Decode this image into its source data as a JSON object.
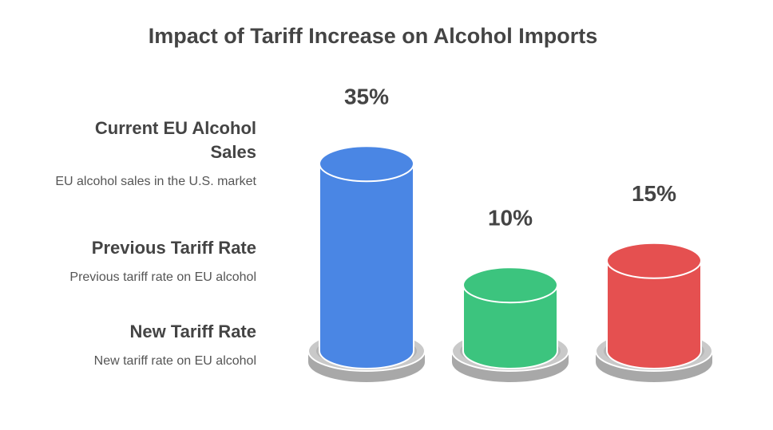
{
  "chart_data": {
    "type": "bar",
    "title": "Impact of Tariff Increase on Alcohol Imports",
    "categories": [
      "Current EU Alcohol Sales",
      "Previous Tariff Rate",
      "New Tariff Rate"
    ],
    "descriptions": [
      "EU alcohol sales in the U.S. market",
      "Previous tariff rate on EU alcohol",
      "New tariff rate on EU alcohol"
    ],
    "values": [
      35,
      10,
      15
    ],
    "value_labels": [
      "35%",
      "10%",
      "15%"
    ],
    "colors": [
      "#4a86e4",
      "#3cc47e",
      "#e55050"
    ]
  }
}
